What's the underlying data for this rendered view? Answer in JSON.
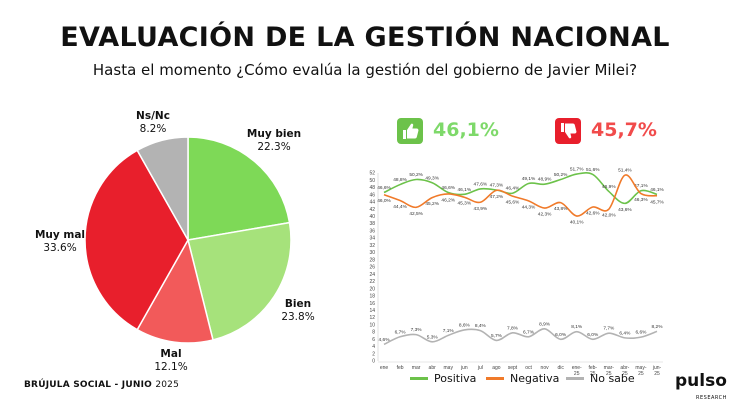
{
  "header": {
    "title": "EVALUACIÓN DE LA GESTIÓN NACIONAL",
    "subtitle": "Hasta el momento ¿Cómo evalúa la gestión del gobierno de Javier Milei?"
  },
  "kpi": {
    "positive_value": "46,1%",
    "negative_value": "45,7%",
    "positive_color": "#7ed96a",
    "negative_color": "#f14b4b",
    "positive_icon": "thumbs-up-icon",
    "negative_icon": "thumbs-down-icon"
  },
  "footer": {
    "source": "BRÚJULA SOCIAL - JUNIO",
    "year": "2025",
    "logo": "pulso",
    "logo_sub": "RESEARCH"
  },
  "chart_data": [
    {
      "type": "pie",
      "slices": [
        {
          "label": "Muy bien",
          "value": 22.3,
          "display": "22.3%",
          "color": "#7ed957"
        },
        {
          "label": "Bien",
          "value": 23.8,
          "display": "23.8%",
          "color": "#a6e27b"
        },
        {
          "label": "Mal",
          "value": 12.1,
          "display": "12.1%",
          "color": "#f25a5a"
        },
        {
          "label": "Muy mal",
          "value": 33.6,
          "display": "33.6%",
          "color": "#e81f2c"
        },
        {
          "label": "Ns/Nc",
          "value": 8.2,
          "display": "8.2%",
          "color": "#b3b3b3"
        }
      ]
    },
    {
      "type": "line",
      "categories": [
        "ene",
        "feb",
        "mar",
        "abr",
        "may",
        "jun",
        "jul",
        "ago",
        "sept",
        "oct",
        "nov",
        "dic",
        "ene-\n25",
        "feb-\n25",
        "mar-\n25",
        "abr-\n25",
        "may-\n25",
        "jun-\n25"
      ],
      "yticks": [
        0,
        2,
        4,
        6,
        8,
        10,
        12,
        14,
        16,
        18,
        20,
        22,
        24,
        26,
        28,
        30,
        32,
        34,
        36,
        38,
        40,
        42,
        44,
        46,
        48,
        50,
        52
      ],
      "ylim": [
        0,
        52
      ],
      "series": [
        {
          "name": "Positiva",
          "color": "#6cc24a",
          "values": [
            46.6,
            48.8,
            50.2,
            49.3,
            46.6,
            46.1,
            47.6,
            47.3,
            46.4,
            49.1,
            48.9,
            50.2,
            51.7,
            51.6,
            46.9,
            43.6,
            47.1,
            46.1
          ],
          "labels": [
            "46,6%",
            "48,8%",
            "50,2%",
            "49,3%",
            "46,6%",
            "46,1%",
            "47,6%",
            "47,3%",
            "46,4%",
            "49,1%",
            "48,9%",
            "50,2%",
            "51,7%",
            "51,6%",
            "46,9%",
            "43,6%",
            "47,1%",
            "46,1%"
          ]
        },
        {
          "name": "Negativa",
          "color": "#f07a2a",
          "values": [
            46.0,
            44.4,
            42.5,
            45.2,
            46.2,
            45.3,
            43.9,
            47.2,
            45.6,
            44.3,
            42.3,
            43.8,
            40.1,
            42.6,
            42.0,
            51.4,
            46.3,
            45.7
          ],
          "labels": [
            "46,0%",
            "44,4%",
            "42,5%",
            "45,2%",
            "46,2%",
            "45,3%",
            "43,9%",
            "47,2%",
            "45,6%",
            "44,3%",
            "42,3%",
            "43,8%",
            "40,1%",
            "42,6%",
            "42,0%",
            "51,4%",
            "46,3%",
            "45,7%"
          ]
        },
        {
          "name": "No sabe",
          "color": "#b3b3b3",
          "values": [
            4.6,
            6.7,
            7.3,
            5.3,
            7.1,
            8.6,
            8.4,
            5.7,
            7.8,
            6.7,
            8.9,
            6.0,
            8.1,
            6.0,
            7.7,
            6.4,
            6.6,
            8.2
          ],
          "labels": [
            "4,6%",
            "6,7%",
            "7,3%",
            "5,3%",
            "7,1%",
            "8,6%",
            "8,4%",
            "5,7%",
            "7,8%",
            "6,7%",
            "8,9%",
            "6,0%",
            "8,1%",
            "6,0%",
            "7,7%",
            "6,4%",
            "6,6%",
            "8,2%"
          ]
        }
      ]
    }
  ]
}
